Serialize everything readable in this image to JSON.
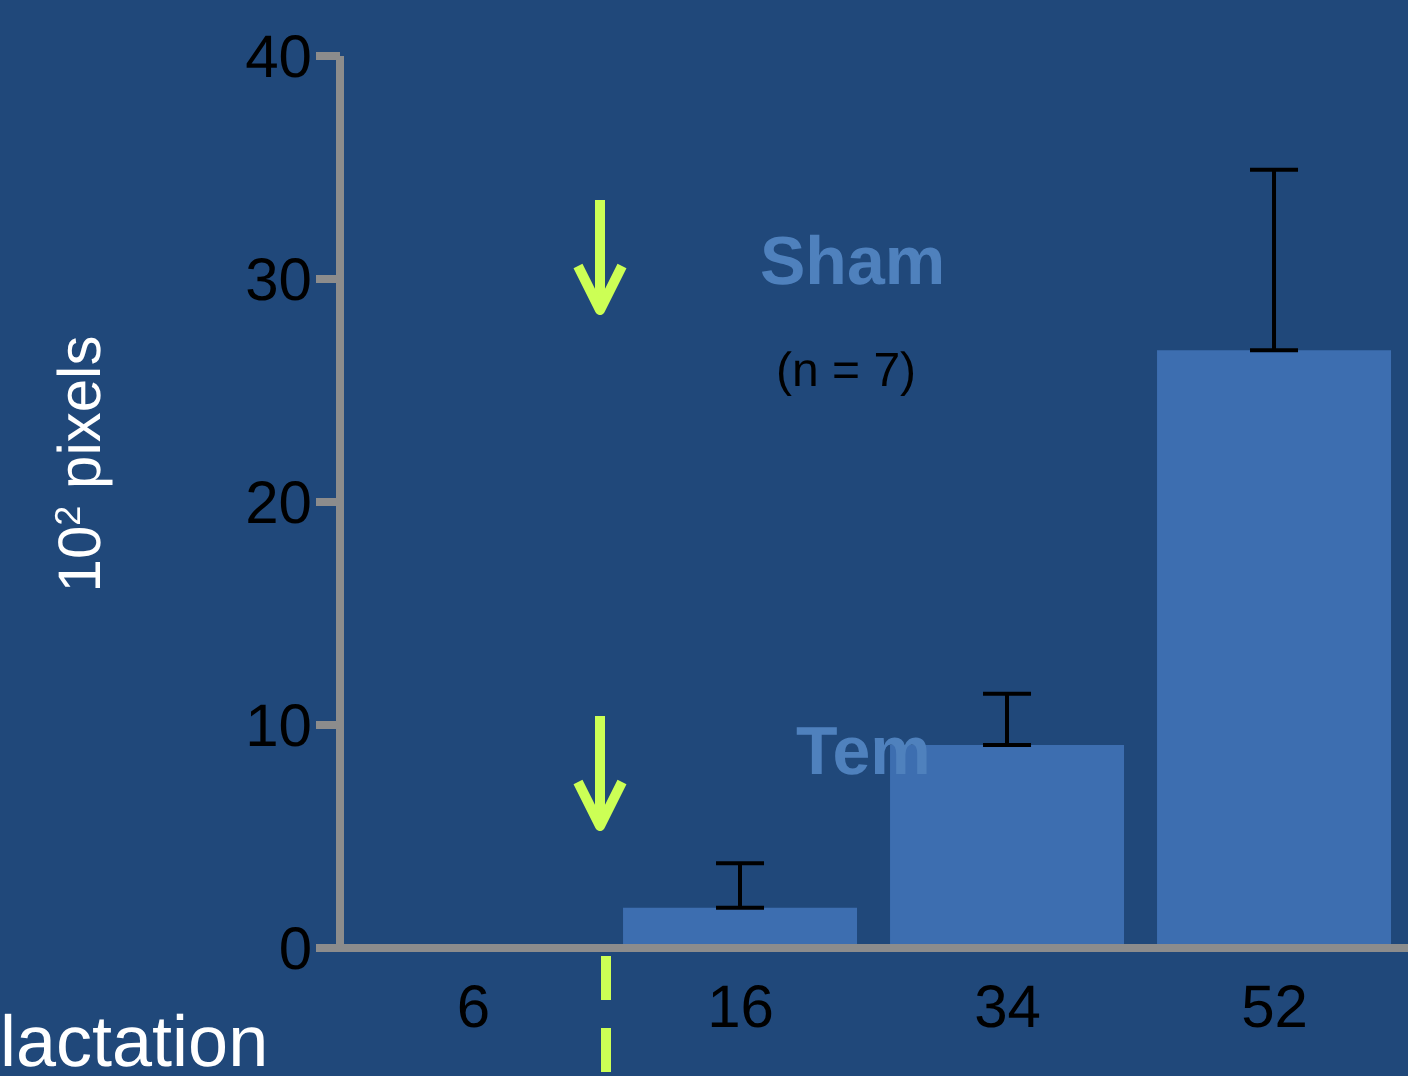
{
  "chart_data": {
    "type": "bar",
    "categories": [
      "6",
      "16",
      "34",
      "52"
    ],
    "values": [
      null,
      1.8,
      9.1,
      26.8
    ],
    "errors": [
      null,
      [
        1.8,
        3.8
      ],
      [
        9.1,
        11.4
      ],
      [
        26.8,
        34.9
      ]
    ],
    "color": "#3d6eb0",
    "xlabel": "lactation",
    "ylabel": "10$^{2}$ pixels",
    "ylim": [
      0,
      40
    ],
    "yticks": [
      0,
      10,
      20,
      30,
      40
    ],
    "annotations": [
      "Sham",
      "(n = 7)",
      "Tem"
    ]
  }
}
